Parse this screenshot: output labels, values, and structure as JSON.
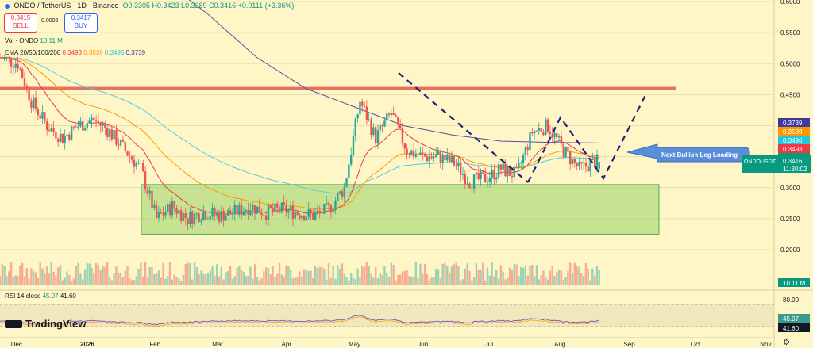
{
  "header": {
    "symbol": "ONDO / TetherUS · 1D · Binance",
    "o_label": "O",
    "o": "0.3305",
    "h_label": "H",
    "h": "0.3423",
    "l_label": "L",
    "l": "0.3289",
    "c_label": "C",
    "c": "0.3416",
    "chg": "+0.0111 (+3.36%)"
  },
  "trade": {
    "sell_price": "0.3415",
    "sell_label": "SELL",
    "spread": "0.0002",
    "buy_price": "0.3417",
    "buy_label": "BUY"
  },
  "volume_legend": {
    "label": "Vol · ONDO",
    "value": "10.11 M"
  },
  "ema_legend": {
    "label": "EMA 20/50/100/200",
    "v20": "0.3493",
    "v50": "0.3539",
    "v100": "0.3496",
    "v200": "0.3739"
  },
  "rsi_legend": {
    "label": "RSI 14 close",
    "v1": "45.07",
    "v2": "41.60"
  },
  "brand": "TradingView",
  "colors": {
    "bg": "#fff6c8",
    "up": "#26a69a",
    "down": "#ef5350",
    "ema20": "#f23645",
    "ema50": "#ff9800",
    "ema100": "#4dd0e1",
    "ema200": "#5b4ea0",
    "resistance": "#e25a4a",
    "zone": "#9ad26a"
  },
  "annotation": "Next Bullish Leg Loading",
  "chart_data": {
    "type": "candlestick",
    "symbol": "ONDOUSDT",
    "timeframe": "1D",
    "y_ticks": [
      "0.6000",
      "0.5500",
      "0.5000",
      "0.4500",
      "0.4000",
      "0.3500",
      "0.3000",
      "0.2500",
      "0.2000"
    ],
    "x_ticks": [
      "Dec",
      "2026",
      "Feb",
      "Mar",
      "Apr",
      "May",
      "Jun",
      "Jul",
      "Aug",
      "Sep",
      "Oct",
      "Nov"
    ],
    "price_labels": [
      {
        "value": "0.3739",
        "color": "#3f3aa0",
        "y": 0.3739
      },
      {
        "value": "0.3539",
        "color": "#ff9800",
        "y": 0.3539
      },
      {
        "value": "0.3496",
        "color": "#26c6da",
        "y": 0.3496
      },
      {
        "value": "0.3493",
        "color": "#f23645",
        "y": 0.3493
      },
      {
        "value": "0.3416",
        "color": "#089981",
        "y": 0.3416
      }
    ],
    "last_price_tag": {
      "symbol": "ONDOUSDT",
      "price": "0.3416",
      "countdown": "11:30:02"
    },
    "volume_tag": "10.11 M",
    "resistance_level": 0.46,
    "demand_zone": [
      0.225,
      0.305
    ],
    "close_path": [
      {
        "date": "2025-11-24",
        "close": 0.51
      },
      {
        "date": "2025-12-02",
        "close": 0.5
      },
      {
        "date": "2025-12-08",
        "close": 0.44
      },
      {
        "date": "2025-12-15",
        "close": 0.4
      },
      {
        "date": "2025-12-22",
        "close": 0.38
      },
      {
        "date": "2025-12-29",
        "close": 0.4
      },
      {
        "date": "2026-01-05",
        "close": 0.41
      },
      {
        "date": "2026-01-12",
        "close": 0.39
      },
      {
        "date": "2026-01-19",
        "close": 0.36
      },
      {
        "date": "2026-01-26",
        "close": 0.33
      },
      {
        "date": "2026-02-02",
        "close": 0.25
      },
      {
        "date": "2026-02-09",
        "close": 0.27
      },
      {
        "date": "2026-02-16",
        "close": 0.25
      },
      {
        "date": "2026-02-23",
        "close": 0.26
      },
      {
        "date": "2026-03-02",
        "close": 0.255
      },
      {
        "date": "2026-03-09",
        "close": 0.26
      },
      {
        "date": "2026-03-16",
        "close": 0.27
      },
      {
        "date": "2026-03-23",
        "close": 0.26
      },
      {
        "date": "2026-03-30",
        "close": 0.265
      },
      {
        "date": "2026-04-06",
        "close": 0.26
      },
      {
        "date": "2026-04-13",
        "close": 0.255
      },
      {
        "date": "2026-04-20",
        "close": 0.265
      },
      {
        "date": "2026-04-27",
        "close": 0.3
      },
      {
        "date": "2026-05-04",
        "close": 0.44
      },
      {
        "date": "2026-05-11",
        "close": 0.38
      },
      {
        "date": "2026-05-18",
        "close": 0.42
      },
      {
        "date": "2026-05-25",
        "close": 0.36
      },
      {
        "date": "2026-06-01",
        "close": 0.35
      },
      {
        "date": "2026-06-08",
        "close": 0.35
      },
      {
        "date": "2026-06-15",
        "close": 0.34
      },
      {
        "date": "2026-06-22",
        "close": 0.31
      },
      {
        "date": "2026-06-29",
        "close": 0.315
      },
      {
        "date": "2026-07-06",
        "close": 0.33
      },
      {
        "date": "2026-07-13",
        "close": 0.32
      },
      {
        "date": "2026-07-20",
        "close": 0.39
      },
      {
        "date": "2026-07-27",
        "close": 0.4
      },
      {
        "date": "2026-08-03",
        "close": 0.36
      },
      {
        "date": "2026-08-10",
        "close": 0.33
      },
      {
        "date": "2026-08-17",
        "close": 0.3416
      }
    ],
    "ema200_path": [
      0.64,
      0.58,
      0.51,
      0.46,
      0.43,
      0.4,
      0.385,
      0.375,
      0.373,
      0.372
    ],
    "rsi": {
      "upper": 80,
      "labels": [
        "80.00"
      ],
      "rsi_value": 45.07,
      "ma_value": 41.6
    }
  }
}
